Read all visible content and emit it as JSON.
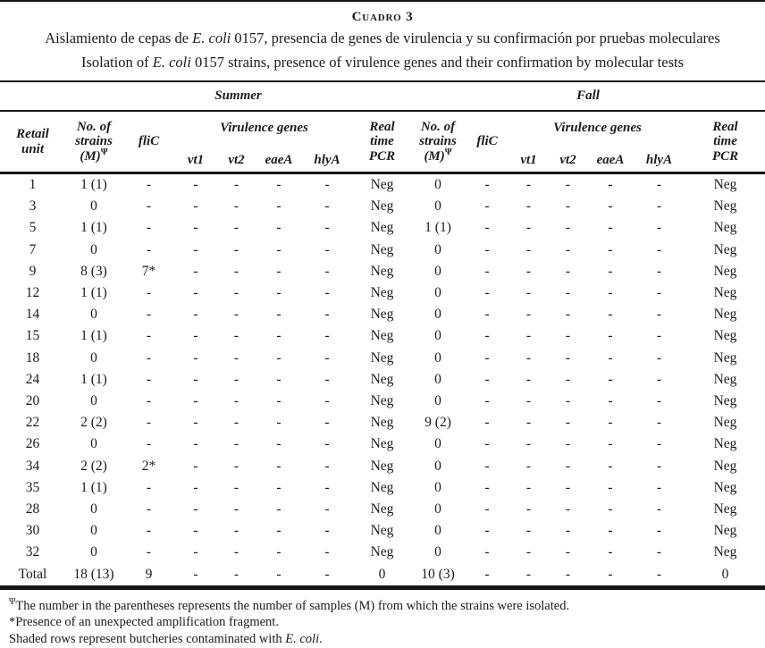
{
  "page": {
    "table_number": "Cuadro 3",
    "title_es": {
      "pre": "Aislamiento de cepas de ",
      "italic": "E. coli",
      "post": " 0157, presencia de genes de virulencia y su confirmación por pruebas moleculares"
    },
    "title_en": {
      "pre": "Isolation of ",
      "italic": "E. coli",
      "post": " 0157 strains, presence of virulence genes and their confirmation by molecular tests"
    }
  },
  "table": {
    "seasons": {
      "summer": "Summer",
      "fall": "Fall"
    },
    "headers": {
      "retail": [
        "Retail",
        "unit"
      ],
      "strains": [
        "No. of",
        "strains",
        "(M)"
      ],
      "strains_sup": "Ψ",
      "flic": "fliC",
      "virulence_genes": "Virulence genes",
      "genes": [
        "vt1",
        "vt2",
        "eaeA",
        "hlyA"
      ],
      "real_time_pcr": [
        "Real",
        "time",
        "PCR"
      ]
    },
    "rows": [
      {
        "unit": "1",
        "cells": [
          "1 (1)",
          "-",
          "-",
          "-",
          "-",
          "-",
          "Neg",
          "0",
          "-",
          "-",
          "-",
          "-",
          "-",
          "Neg"
        ]
      },
      {
        "unit": "3",
        "cells": [
          "0",
          "-",
          "-",
          "-",
          "-",
          "-",
          "Neg",
          "0",
          "-",
          "-",
          "-",
          "-",
          "-",
          "Neg"
        ]
      },
      {
        "unit": "5",
        "cells": [
          "1 (1)",
          "-",
          "-",
          "-",
          "-",
          "-",
          "Neg",
          "1 (1)",
          "-",
          "-",
          "-",
          "-",
          "-",
          "Neg"
        ]
      },
      {
        "unit": "7",
        "cells": [
          "0",
          "-",
          "-",
          "-",
          "-",
          "-",
          "Neg",
          "0",
          "-",
          "-",
          "-",
          "-",
          "-",
          "Neg"
        ]
      },
      {
        "unit": "9",
        "cells": [
          "8 (3)",
          "7*",
          "-",
          "-",
          "-",
          "-",
          "Neg",
          "0",
          "-",
          "-",
          "-",
          "-",
          "-",
          "Neg"
        ]
      },
      {
        "unit": "12",
        "cells": [
          "1 (1)",
          "-",
          "-",
          "-",
          "-",
          "-",
          "Neg",
          "0",
          "-",
          "-",
          "-",
          "-",
          "-",
          "Neg"
        ]
      },
      {
        "unit": "14",
        "cells": [
          "0",
          "-",
          "-",
          "-",
          "-",
          "-",
          "Neg",
          "0",
          "-",
          "-",
          "-",
          "-",
          "-",
          "Neg"
        ]
      },
      {
        "unit": "15",
        "cells": [
          "1 (1)",
          "-",
          "-",
          "-",
          "-",
          "-",
          "Neg",
          "0",
          "-",
          "-",
          "-",
          "-",
          "-",
          "Neg"
        ]
      },
      {
        "unit": "18",
        "cells": [
          "0",
          "-",
          "-",
          "-",
          "-",
          "-",
          "Neg",
          "0",
          "-",
          "-",
          "-",
          "-",
          "-",
          "Neg"
        ]
      },
      {
        "unit": "24",
        "cells": [
          "1 (1)",
          "-",
          "-",
          "-",
          "-",
          "-",
          "Neg",
          "0",
          "-",
          "-",
          "-",
          "-",
          "-",
          "Neg"
        ]
      },
      {
        "unit": "20",
        "cells": [
          "0",
          "-",
          "-",
          "-",
          "-",
          "-",
          "Neg",
          "0",
          "-",
          "-",
          "-",
          "-",
          "-",
          "Neg"
        ]
      },
      {
        "unit": "22",
        "cells": [
          "2 (2)",
          "-",
          "-",
          "-",
          "-",
          "-",
          "Neg",
          "9 (2)",
          "-",
          "-",
          "-",
          "-",
          "-",
          "Neg"
        ]
      },
      {
        "unit": "26",
        "cells": [
          "0",
          "-",
          "-",
          "-",
          "-",
          "-",
          "Neg",
          "0",
          "-",
          "-",
          "-",
          "-",
          "-",
          "Neg"
        ]
      },
      {
        "unit": "34",
        "cells": [
          "2 (2)",
          "2*",
          "-",
          "-",
          "-",
          "-",
          "Neg",
          "0",
          "-",
          "-",
          "-",
          "-",
          "-",
          "Neg"
        ]
      },
      {
        "unit": "35",
        "cells": [
          "1 (1)",
          "-",
          "-",
          "-",
          "-",
          "-",
          "Neg",
          "0",
          "-",
          "-",
          "-",
          "-",
          "-",
          "Neg"
        ]
      },
      {
        "unit": "28",
        "cells": [
          "0",
          "-",
          "-",
          "-",
          "-",
          "-",
          "Neg",
          "0",
          "-",
          "-",
          "-",
          "-",
          "-",
          "Neg"
        ]
      },
      {
        "unit": "30",
        "cells": [
          "0",
          "-",
          "-",
          "-",
          "-",
          "-",
          "Neg",
          "0",
          "-",
          "-",
          "-",
          "-",
          "-",
          "Neg"
        ]
      },
      {
        "unit": "32",
        "cells": [
          "0",
          "-",
          "-",
          "-",
          "-",
          "-",
          "Neg",
          "0",
          "-",
          "-",
          "-",
          "-",
          "-",
          "Neg"
        ]
      },
      {
        "unit": "Total",
        "cells": [
          "18 (13)",
          "9",
          "-",
          "-",
          "-",
          "-",
          "0",
          "10 (3)",
          "-",
          "-",
          "-",
          "-",
          "-",
          "0"
        ]
      }
    ]
  },
  "footnotes": {
    "note1_sup": "Ψ",
    "note1": "The number in the parentheses represents the number of samples (M) from which the strains were isolated.",
    "note2": "*Presence of an unexpected amplification fragment.",
    "note3": {
      "pre": "Shaded rows represent butcheries contaminated with ",
      "italic": "E. coli",
      "post": "."
    }
  }
}
